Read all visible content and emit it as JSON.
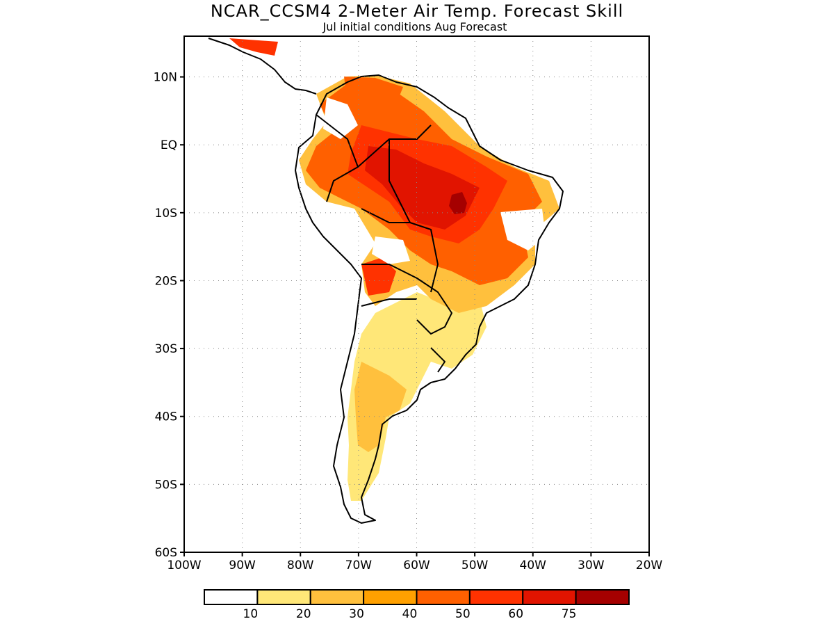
{
  "title": "NCAR_CCSM4 2-Meter Air Temp. Forecast Skill",
  "subtitle": "Jul initial conditions  Aug Forecast",
  "map": {
    "lon_range": [
      -100,
      -20
    ],
    "lat_range": [
      -60,
      16
    ],
    "x_ticks": [
      {
        "lon": -100,
        "label": "100W"
      },
      {
        "lon": -90,
        "label": "90W"
      },
      {
        "lon": -80,
        "label": "80W"
      },
      {
        "lon": -70,
        "label": "70W"
      },
      {
        "lon": -60,
        "label": "60W"
      },
      {
        "lon": -50,
        "label": "50W"
      },
      {
        "lon": -40,
        "label": "40W"
      },
      {
        "lon": -30,
        "label": "30W"
      },
      {
        "lon": -20,
        "label": "20W"
      }
    ],
    "y_ticks": [
      {
        "lat": 10,
        "label": "10N"
      },
      {
        "lat": 0,
        "label": "EQ"
      },
      {
        "lat": -10,
        "label": "10S"
      },
      {
        "lat": -20,
        "label": "20S"
      },
      {
        "lat": -30,
        "label": "30S"
      },
      {
        "lat": -40,
        "label": "40S"
      },
      {
        "lat": -50,
        "label": "50S"
      },
      {
        "lat": -60,
        "label": "60S"
      }
    ],
    "grid": "dotted"
  },
  "colorbar": {
    "colors": [
      "#ffffff",
      "#ffe778",
      "#ffc03d",
      "#ffa000",
      "#ff6000",
      "#ff3200",
      "#e11400",
      "#a50000"
    ],
    "labels": [
      "10",
      "20",
      "30",
      "40",
      "50",
      "60",
      "75"
    ]
  },
  "skill_regions": [
    {
      "lon": -54,
      "lat": -8,
      "level": 7
    },
    {
      "lon": -55,
      "lat": -9,
      "level": 6
    },
    {
      "lon": -62,
      "lat": -3,
      "level": 6
    },
    {
      "lon": -46,
      "lat": -6,
      "level": 5
    },
    {
      "lon": -68,
      "lat": 8,
      "level": 4
    },
    {
      "lon": -44,
      "lat": -18,
      "level": 5
    },
    {
      "lon": -66,
      "lat": -19,
      "level": 5
    },
    {
      "lon": -52,
      "lat": -22,
      "level": 2
    },
    {
      "lon": -68,
      "lat": -35,
      "level": 2
    },
    {
      "lon": -70,
      "lat": -43,
      "level": 2
    },
    {
      "lon": -60,
      "lat": -26,
      "level": 1
    }
  ]
}
